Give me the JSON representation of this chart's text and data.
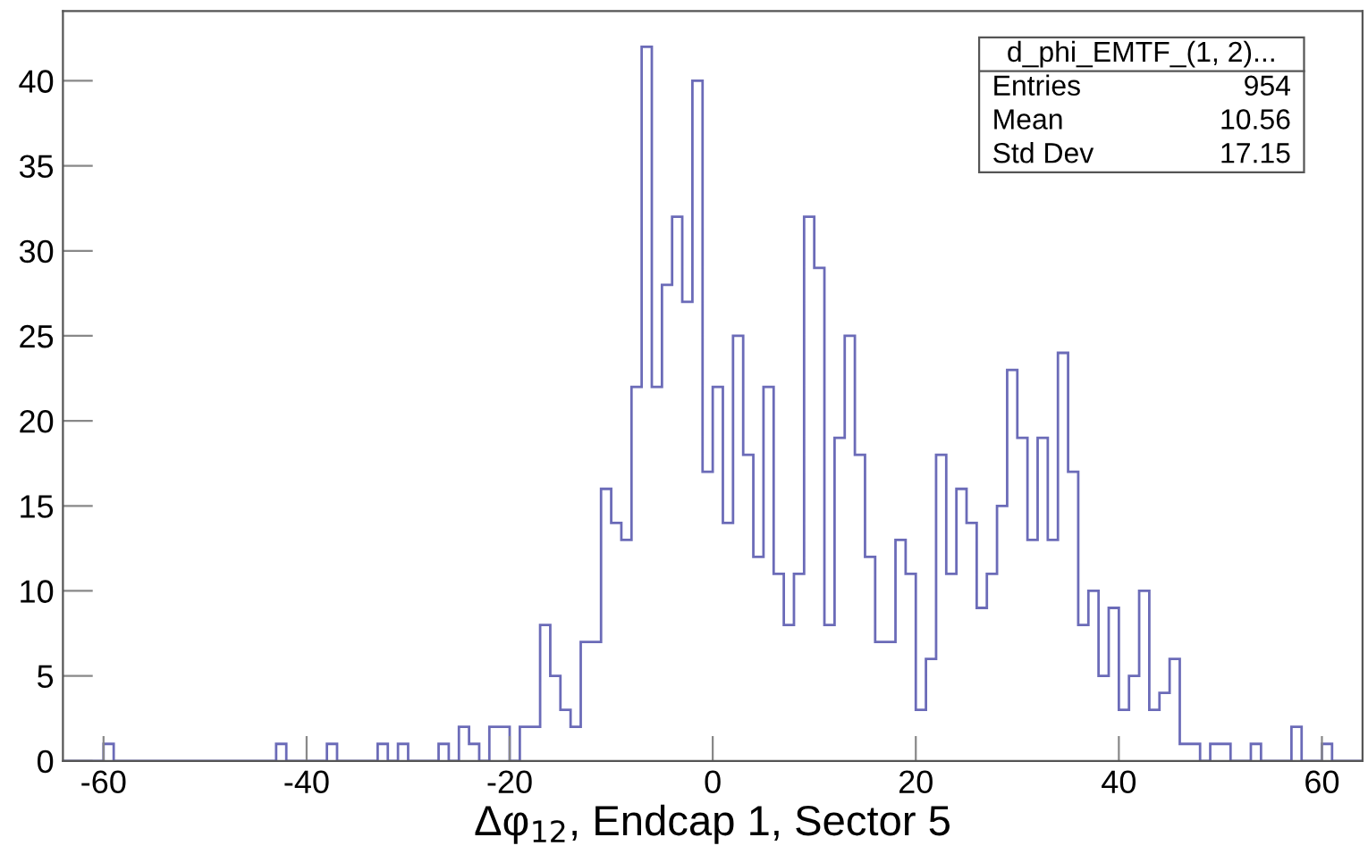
{
  "chart_data": {
    "type": "histogram",
    "xlabel": "Δφ$_{12}$, Endcap 1, Sector 5",
    "bins": [
      -64,
      -63,
      -62,
      -61,
      -60,
      -59,
      -58,
      -57,
      -56,
      -55,
      -54,
      -53,
      -52,
      -51,
      -50,
      -49,
      -48,
      -47,
      -46,
      -45,
      -44,
      -43,
      -42,
      -41,
      -40,
      -39,
      -38,
      -37,
      -36,
      -35,
      -34,
      -33,
      -32,
      -31,
      -30,
      -29,
      -28,
      -27,
      -26,
      -25,
      -24,
      -23,
      -22,
      -21,
      -20,
      -19,
      -18,
      -17,
      -16,
      -15,
      -14,
      -13,
      -12,
      -11,
      -10,
      -9,
      -8,
      -7,
      -6,
      -5,
      -4,
      -3,
      -2,
      -1,
      0,
      1,
      2,
      3,
      4,
      5,
      6,
      7,
      8,
      9,
      10,
      11,
      12,
      13,
      14,
      15,
      16,
      17,
      18,
      19,
      20,
      21,
      22,
      23,
      24,
      25,
      26,
      27,
      28,
      29,
      30,
      31,
      32,
      33,
      34,
      35,
      36,
      37,
      38,
      39,
      40,
      41,
      42,
      43,
      44,
      45,
      46,
      47,
      48,
      49,
      50,
      51,
      52,
      53,
      54,
      55,
      56,
      57,
      58,
      59,
      60,
      61,
      62,
      63,
      64
    ],
    "values": [
      0,
      0,
      0,
      0,
      1,
      0,
      0,
      0,
      0,
      0,
      0,
      0,
      0,
      0,
      0,
      0,
      0,
      0,
      0,
      0,
      0,
      1,
      0,
      0,
      0,
      0,
      1,
      0,
      0,
      0,
      0,
      1,
      0,
      1,
      0,
      0,
      0,
      1,
      0,
      2,
      1,
      0,
      2,
      2,
      0,
      2,
      2,
      8,
      5,
      3,
      2,
      7,
      7,
      16,
      14,
      13,
      22,
      42,
      22,
      28,
      32,
      27,
      40,
      17,
      22,
      14,
      25,
      18,
      12,
      22,
      11,
      8,
      11,
      32,
      29,
      8,
      19,
      25,
      18,
      12,
      7,
      7,
      13,
      11,
      3,
      6,
      18,
      11,
      16,
      14,
      9,
      11,
      15,
      23,
      19,
      13,
      19,
      13,
      24,
      17,
      8,
      10,
      5,
      9,
      3,
      5,
      10,
      3,
      4,
      6,
      1,
      1,
      0,
      1,
      1,
      0,
      0,
      1,
      0,
      0,
      0,
      2,
      0,
      0,
      1,
      0,
      0,
      0
    ],
    "color": "#6b6bb8",
    "xlim": [
      -64,
      64
    ],
    "ylim": [
      0,
      44.1
    ],
    "xticks": [
      -60,
      -40,
      -20,
      0,
      20,
      40,
      60
    ],
    "yticks": [
      0,
      5,
      10,
      15,
      20,
      25,
      30,
      35,
      40
    ],
    "annotations": [
      "d_phi_EMTF_(1, 2)...",
      "Entries",
      "954",
      "Mean",
      "10.56",
      "Std Dev",
      "17.15"
    ],
    "grid": false,
    "legend": false
  }
}
